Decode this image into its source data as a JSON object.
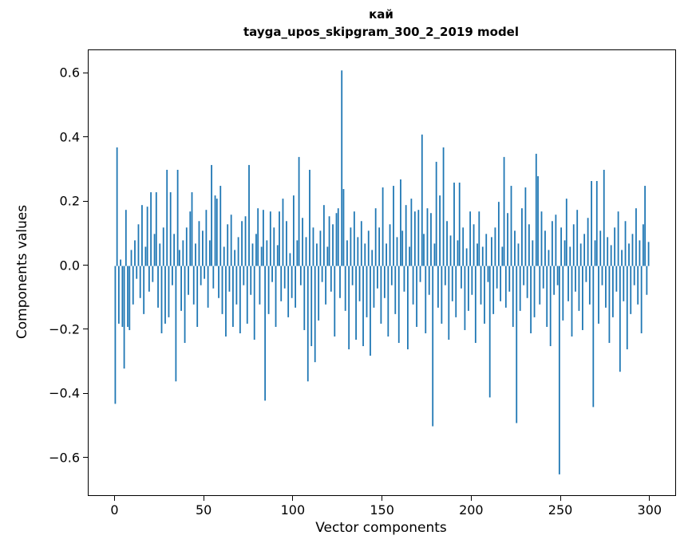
{
  "figure": {
    "background": "#ffffff",
    "title_line1": "кай",
    "title_line2": "tayga_upos_skipgram_300_2_2019 model",
    "xlabel": "Vector components",
    "ylabel": "Components values"
  },
  "chart_data": {
    "type": "bar",
    "title": "кай",
    "subtitle": "tayga_upos_skipgram_300_2_2019 model",
    "xlabel": "Vector components",
    "ylabel": "Components values",
    "bar_color": "#1f77b4",
    "grid": false,
    "legend": "none",
    "xlim": [
      -14.95,
      313.95
    ],
    "ylim": [
      -0.715,
      0.673
    ],
    "x_ticks": [
      0,
      50,
      100,
      150,
      200,
      250,
      300
    ],
    "x_tick_labels": [
      "0",
      "50",
      "100",
      "150",
      "200",
      "250",
      "300"
    ],
    "y_ticks": [
      0.6,
      0.4,
      0.2,
      0.0,
      -0.2,
      -0.4,
      -0.6
    ],
    "y_tick_labels": [
      "0.6",
      "0.4",
      "0.2",
      "0.0",
      "−0.2",
      "−0.4",
      "−0.6"
    ],
    "bar_width": 0.8,
    "values": [
      -0.43,
      0.37,
      -0.18,
      0.02,
      -0.19,
      -0.32,
      0.175,
      -0.19,
      -0.2,
      0.05,
      -0.12,
      0.08,
      -0.04,
      0.13,
      -0.1,
      0.19,
      -0.15,
      0.06,
      0.185,
      -0.08,
      0.23,
      -0.05,
      0.1,
      0.23,
      -0.13,
      0.07,
      -0.21,
      0.12,
      -0.18,
      0.3,
      -0.16,
      0.23,
      -0.06,
      0.1,
      -0.36,
      0.3,
      0.05,
      -0.14,
      0.08,
      -0.24,
      0.12,
      -0.09,
      0.17,
      0.23,
      -0.12,
      0.07,
      -0.19,
      0.14,
      -0.06,
      0.11,
      -0.04,
      0.175,
      -0.13,
      0.08,
      0.315,
      -0.07,
      0.22,
      0.21,
      -0.1,
      0.25,
      -0.15,
      0.06,
      -0.22,
      0.13,
      -0.08,
      0.16,
      -0.19,
      0.05,
      -0.12,
      0.09,
      -0.21,
      0.14,
      -0.06,
      0.155,
      -0.18,
      0.315,
      -0.09,
      0.07,
      -0.23,
      0.1,
      0.18,
      -0.12,
      0.06,
      0.175,
      -0.42,
      0.08,
      -0.15,
      0.17,
      -0.05,
      0.12,
      -0.19,
      0.065,
      0.17,
      -0.11,
      0.21,
      -0.07,
      0.14,
      -0.16,
      0.04,
      -0.1,
      0.22,
      -0.13,
      0.08,
      0.34,
      -0.06,
      0.15,
      -0.2,
      0.09,
      -0.36,
      0.3,
      -0.25,
      0.12,
      -0.3,
      0.07,
      -0.17,
      0.11,
      -0.05,
      0.19,
      -0.12,
      0.06,
      0.155,
      -0.08,
      0.13,
      -0.22,
      0.165,
      0.18,
      -0.1,
      0.61,
      0.24,
      -0.14,
      0.08,
      -0.26,
      0.12,
      -0.06,
      0.17,
      -0.23,
      0.09,
      -0.11,
      0.14,
      -0.25,
      0.07,
      -0.16,
      0.11,
      -0.28,
      0.05,
      -0.13,
      0.18,
      -0.07,
      0.12,
      -0.18,
      0.245,
      -0.1,
      0.07,
      -0.22,
      0.13,
      -0.06,
      0.25,
      -0.15,
      0.09,
      -0.24,
      0.27,
      0.11,
      -0.08,
      0.19,
      -0.26,
      0.06,
      0.21,
      -0.12,
      0.17,
      -0.19,
      0.175,
      -0.05,
      0.41,
      0.1,
      -0.21,
      0.18,
      -0.09,
      0.165,
      -0.5,
      0.07,
      0.325,
      -0.13,
      0.22,
      -0.18,
      0.37,
      -0.06,
      0.14,
      -0.23,
      0.095,
      -0.11,
      0.26,
      -0.16,
      0.08,
      0.26,
      -0.07,
      0.12,
      -0.2,
      0.055,
      -0.14,
      0.17,
      -0.09,
      0.13,
      -0.24,
      0.07,
      0.17,
      -0.12,
      0.06,
      -0.18,
      0.1,
      -0.05,
      -0.41,
      0.09,
      -0.15,
      0.12,
      -0.07,
      0.2,
      -0.11,
      0.06,
      0.34,
      -0.13,
      0.165,
      -0.08,
      0.25,
      -0.19,
      0.11,
      -0.49,
      0.07,
      -0.14,
      0.18,
      -0.06,
      0.245,
      -0.1,
      0.13,
      -0.21,
      0.08,
      -0.16,
      0.35,
      0.28,
      -0.12,
      0.17,
      -0.07,
      0.11,
      -0.19,
      0.05,
      -0.25,
      0.14,
      -0.09,
      0.16,
      -0.06,
      -0.65,
      0.12,
      -0.17,
      0.08,
      0.21,
      -0.11,
      0.06,
      -0.22,
      0.13,
      -0.08,
      0.175,
      -0.14,
      0.07,
      -0.2,
      0.1,
      -0.05,
      0.15,
      -0.12,
      0.265,
      -0.44,
      0.08,
      0.265,
      -0.18,
      0.11,
      -0.06,
      0.3,
      -0.13,
      0.09,
      -0.24,
      0.065,
      -0.16,
      0.12,
      -0.08,
      0.17,
      -0.33,
      0.05,
      -0.11,
      0.14,
      -0.26,
      0.07,
      -0.15,
      0.1,
      -0.06,
      0.18,
      -0.12,
      0.08,
      -0.21,
      0.13,
      0.25,
      -0.09,
      0.075
    ]
  }
}
